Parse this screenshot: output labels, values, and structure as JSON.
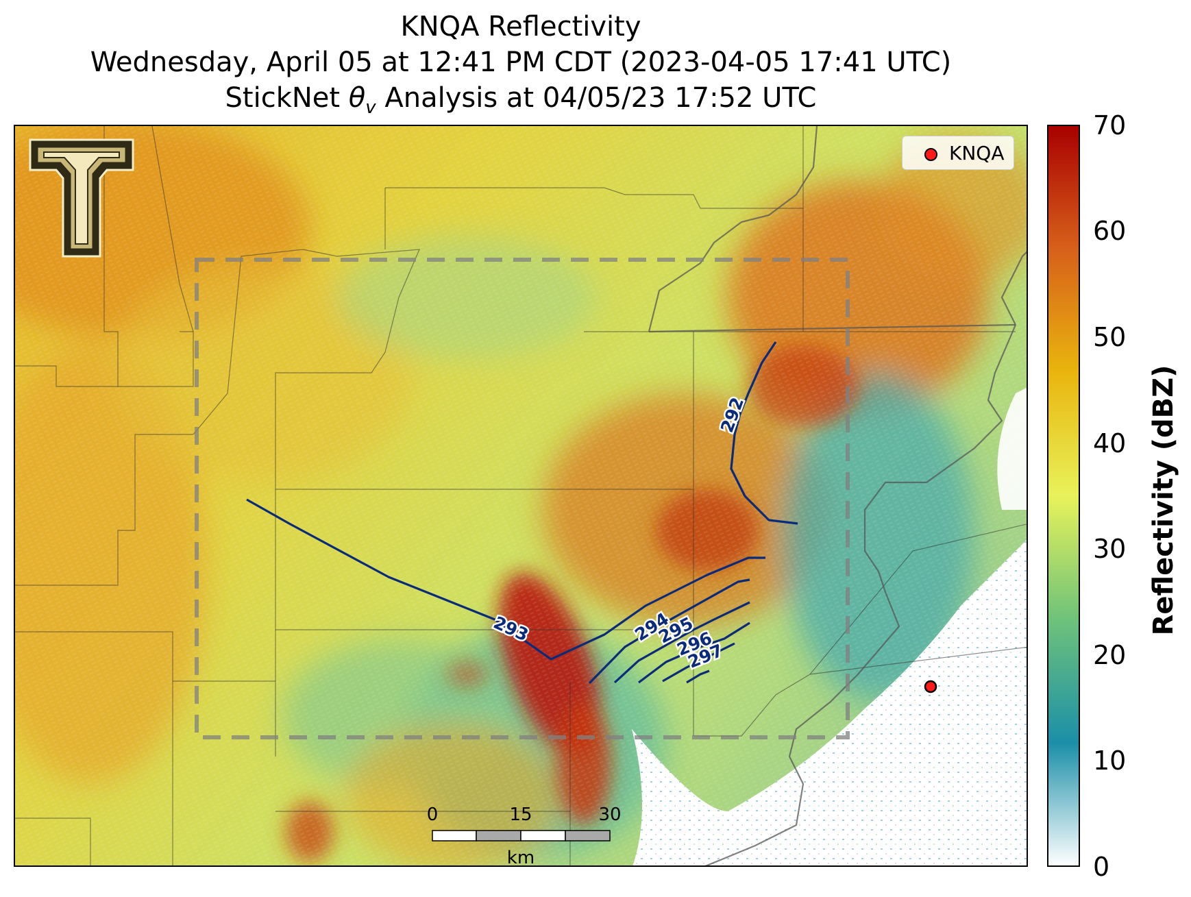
{
  "title": {
    "line1": "KNQA Reflectivity",
    "line2": "Wednesday, April 05 at 12:41 PM CDT (2023-04-05 17:41 UTC)",
    "line3_prefix": "StickNet ",
    "line3_symbol": "θ",
    "line3_subscript": "v",
    "line3_suffix": " Analysis at 04/05/23 17:52 UTC"
  },
  "legend": {
    "label": "KNQA",
    "marker_color": "#ff1a1a"
  },
  "colorbar": {
    "label": "Reflectivity (dBZ)",
    "ticks": [
      "70",
      "60",
      "50",
      "40",
      "30",
      "20",
      "10",
      "0"
    ],
    "range": [
      0,
      70
    ],
    "colors": [
      "#ffffff",
      "#1b8fa8",
      "#6ec27a",
      "#e8f25a",
      "#e9b50e",
      "#d7601a",
      "#a80000"
    ]
  },
  "contours": {
    "variable": "virtual potential temperature",
    "labels": [
      "292",
      "293",
      "294",
      "295",
      "296",
      "297"
    ],
    "color": "#0a2a7a"
  },
  "scale_bar": {
    "ticks": [
      "0",
      "15",
      "30"
    ],
    "unit": "km"
  },
  "logo": {
    "description": "Texas Tech double-T logo",
    "letters": "TT"
  }
}
